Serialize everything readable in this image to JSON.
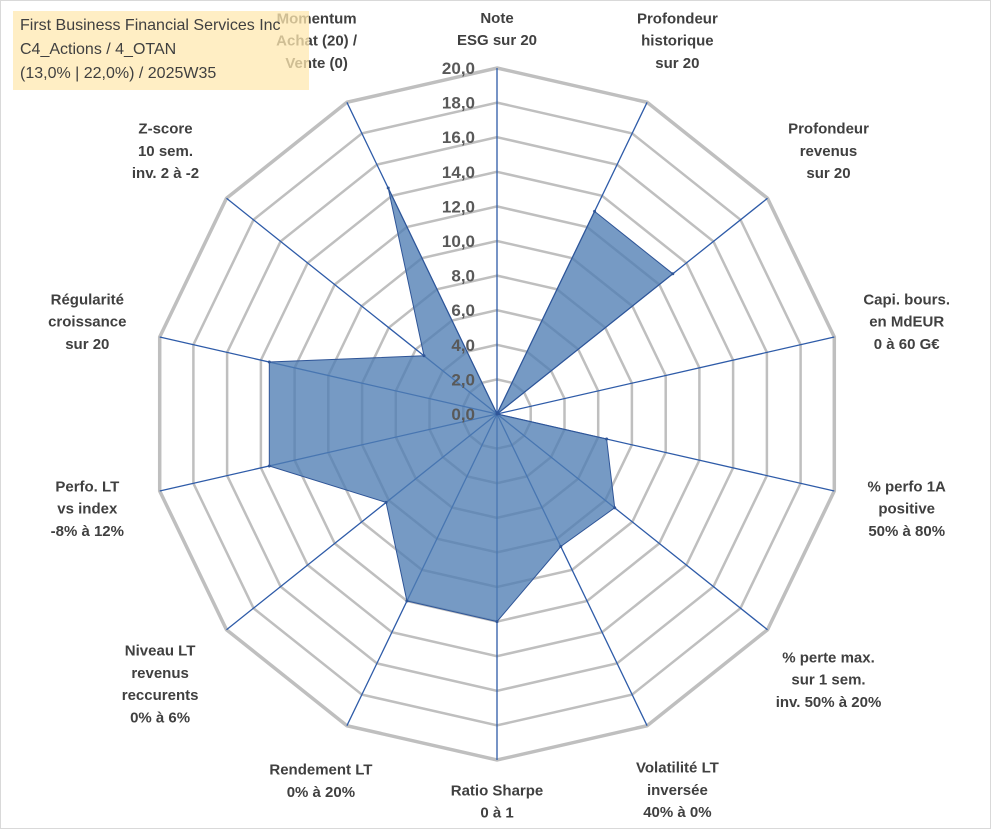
{
  "info": {
    "line1": "First Business Financial Services Inc",
    "line2": "C4_Actions / 4_OTAN",
    "line3": "(13,0% | 22,0%) / 2025W35"
  },
  "colors": {
    "fill": "#4f7db3",
    "stroke": "#2f5597",
    "grid": "#bfbfbf",
    "spoke": "#2e5ba8"
  },
  "chart_data": {
    "type": "radar",
    "title": "",
    "rmin": 0,
    "rmax": 20,
    "tick_step": 2,
    "tick_labels": [
      "0,0",
      "2,0",
      "4,0",
      "6,0",
      "8,0",
      "10,0",
      "12,0",
      "14,0",
      "16,0",
      "18,0",
      "20,0"
    ],
    "axes": [
      {
        "label": [
          "Note",
          "ESG sur 20"
        ],
        "value": 0
      },
      {
        "label": [
          "Profondeur",
          "historique",
          "sur 20"
        ],
        "value": 13
      },
      {
        "label": [
          "Profondeur",
          "revenus",
          "sur 20"
        ],
        "value": 13
      },
      {
        "label": [
          "Capi. bours.",
          "en MdEUR",
          "0 à 60 G€"
        ],
        "value": 0
      },
      {
        "label": [
          "% perfo 1A",
          "positive",
          "50% à 80%"
        ],
        "value": 6.5
      },
      {
        "label": [
          "% perte max.",
          "sur 1 sem.",
          "inv. 50% à 20%"
        ],
        "value": 8.7
      },
      {
        "label": [
          "Volatilité LT",
          "inversée",
          "40% à 0%"
        ],
        "value": 8.5
      },
      {
        "label": [
          "Ratio Sharpe",
          "0 à 1"
        ],
        "value": 12
      },
      {
        "label": [
          "Rendement LT",
          "0% à 20%"
        ],
        "value": 12
      },
      {
        "label": [
          "Niveau LT",
          "revenus",
          "reccurents",
          "0% à 6%"
        ],
        "value": 8.2
      },
      {
        "label": [
          "Perfo. LT",
          "vs index",
          "-8% à 12%"
        ],
        "value": 13.5
      },
      {
        "label": [
          "Régularité",
          "croissance",
          "sur 20"
        ],
        "value": 13.5
      },
      {
        "label": [
          "Z-score",
          "10 sem.",
          "inv. 2 à -2"
        ],
        "value": 5.4
      },
      {
        "label": [
          "Momentum",
          "Achat (20) /",
          "Vente (0)"
        ],
        "value": 14.5
      }
    ]
  }
}
